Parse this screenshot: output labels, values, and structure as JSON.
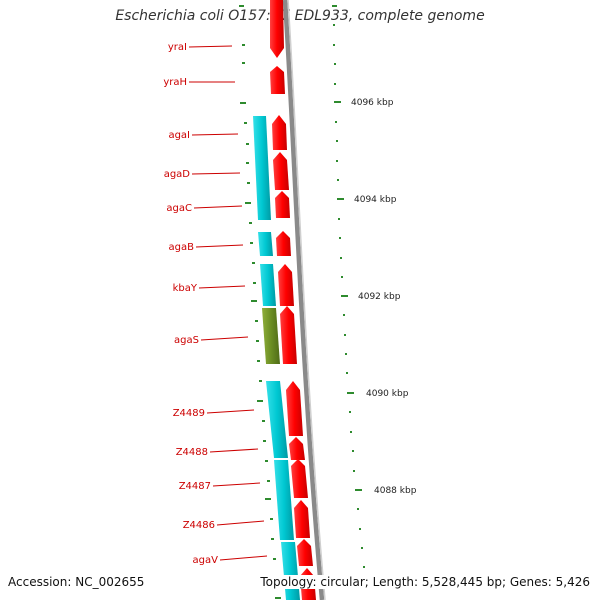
{
  "title": "Escherichia coli O157:H7 EDL933, complete genome",
  "accession": "Accession: NC_002655",
  "topology": "Topology: circular; Length: 5,528,445 bp; Genes: 5,426",
  "colors": {
    "forward_gene": "#ff0000",
    "reverse_gene": "#00c8d2",
    "reverse_gene_alt": "#6b8e23",
    "label": "#cc0000",
    "backbone": "#888888",
    "tick": "#2e8b2e"
  },
  "scale_labels": [
    "4096 kbp",
    "4094 kbp",
    "4092 kbp",
    "4090 kbp",
    "4088 kbp"
  ],
  "gene_labels": [
    "yraI",
    "yraH",
    "agaI",
    "agaD",
    "agaC",
    "agaB",
    "kbaY",
    "agaS",
    "Z4489",
    "Z4488",
    "Z4487",
    "Z4486",
    "agaV"
  ]
}
